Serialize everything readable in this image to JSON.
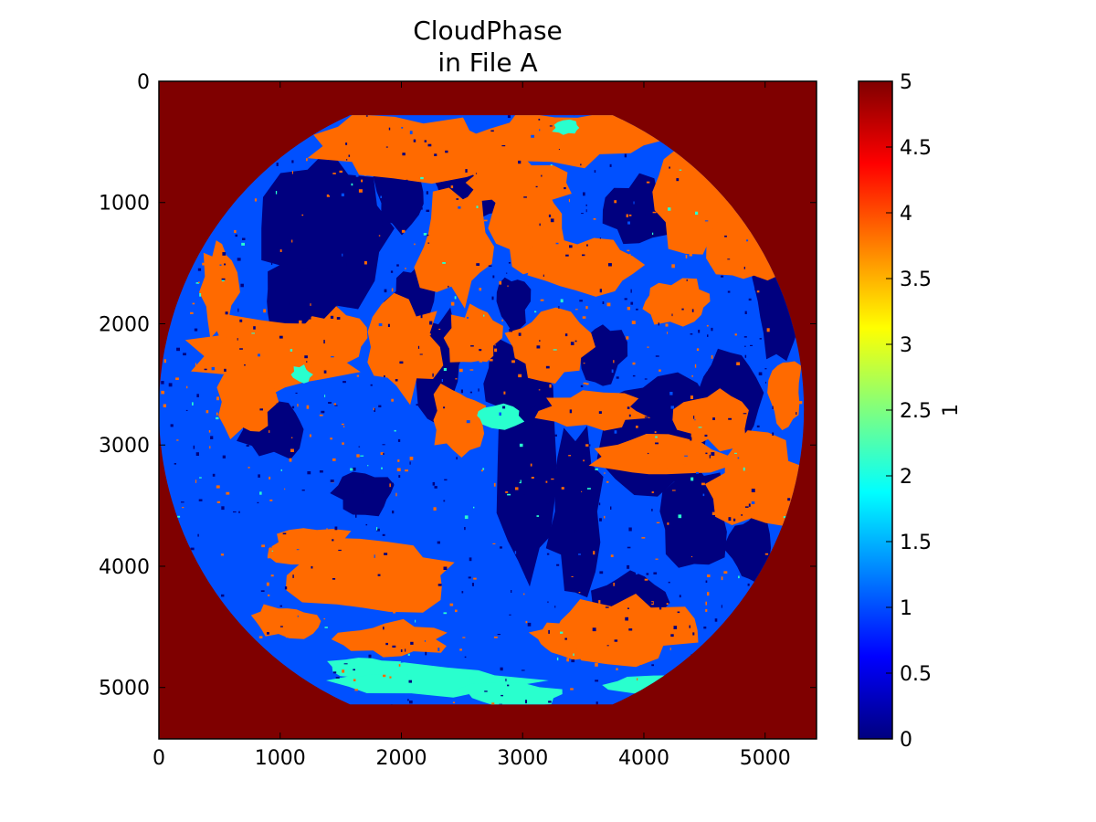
{
  "chart_data": {
    "type": "heatmap",
    "title": [
      "CloudPhase",
      "in File A"
    ],
    "xlabel": "",
    "ylabel": "",
    "xlim": [
      0,
      5424
    ],
    "ylim": [
      5424,
      0
    ],
    "y_inverted": true,
    "x_ticks": [
      0,
      1000,
      2000,
      3000,
      4000,
      5000
    ],
    "y_ticks": [
      0,
      1000,
      2000,
      3000,
      4000,
      5000
    ],
    "grid": false,
    "colormap": "jet",
    "colorbar": {
      "label": "1",
      "range": [
        0,
        5
      ],
      "ticks": [
        "0",
        "0.5",
        "1",
        "1.5",
        "2",
        "2.5",
        "3",
        "3.5",
        "4",
        "4.5",
        "5"
      ],
      "colors": [
        "#00007f",
        "#0000ff",
        "#007fff",
        "#00ffff",
        "#7fff7f",
        "#ffff00",
        "#ff7f00",
        "#ff0000",
        "#7f0000"
      ]
    },
    "phase_colors": {
      "0": "#00007f",
      "1": "#0050ff",
      "2": "#29ffce",
      "4": "#ff6a00",
      "5": "#7f0000"
    },
    "background_value": 5,
    "disk_center": [
      2660,
      2710
    ],
    "disk_radius": 2660,
    "crop_top": 280,
    "crop_bottom": 5140
  }
}
